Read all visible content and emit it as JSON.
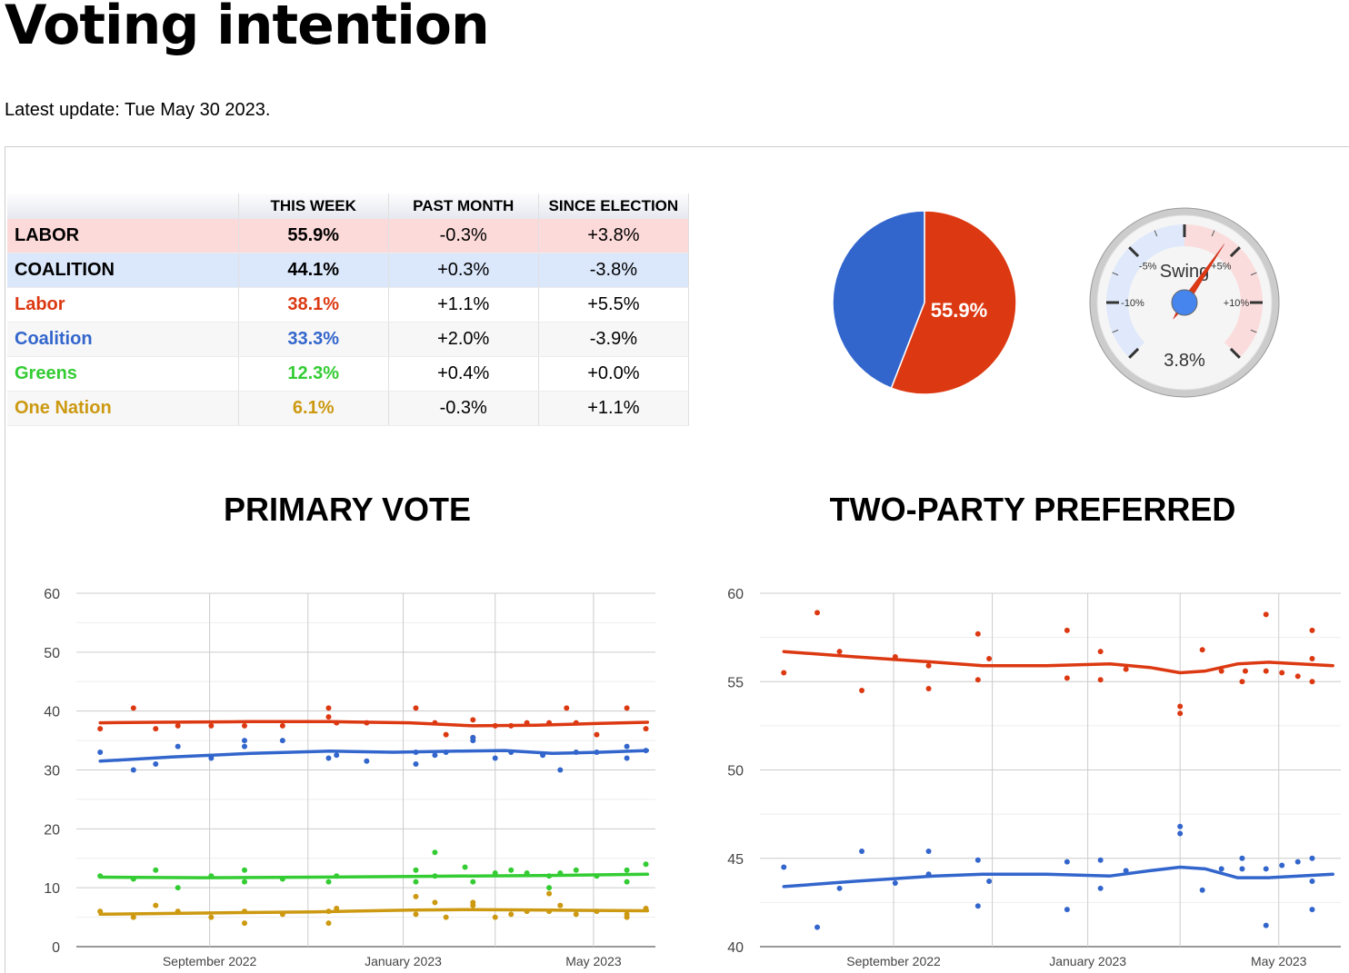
{
  "page": {
    "title": "Voting intention",
    "latest_update": "Latest update: Tue May 30 2023."
  },
  "table": {
    "headers": [
      "",
      "THIS WEEK",
      "PAST MONTH",
      "SINCE ELECTION"
    ],
    "rows": [
      {
        "party": "LABOR",
        "this_week": "55.9%",
        "past_month": "-0.3%",
        "since_election": "+3.8%",
        "color": "#000000"
      },
      {
        "party": "COALITION",
        "this_week": "44.1%",
        "past_month": "+0.3%",
        "since_election": "-3.8%",
        "color": "#000000"
      },
      {
        "party": "Labor",
        "this_week": "38.1%",
        "past_month": "+1.1%",
        "since_election": "+5.5%",
        "color": "#dc3912"
      },
      {
        "party": "Coalition",
        "this_week": "33.3%",
        "past_month": "+2.0%",
        "since_election": "-3.9%",
        "color": "#3366cc"
      },
      {
        "party": "Greens",
        "this_week": "12.3%",
        "past_month": "+0.4%",
        "since_election": "+0.0%",
        "color": "#33cc33"
      },
      {
        "party": "One Nation",
        "this_week": "6.1%",
        "past_month": "-0.3%",
        "since_election": "+1.1%",
        "color": "#cc9911"
      }
    ]
  },
  "pie": {
    "label": "55.9%",
    "slices": [
      {
        "name": "Labor",
        "value": 55.9,
        "color": "#dc3912"
      },
      {
        "name": "Coalition",
        "value": 44.1,
        "color": "#3366cc"
      }
    ]
  },
  "gauge": {
    "title": "Swing",
    "value": 3.8,
    "value_label": "3.8%",
    "min": -15,
    "max": 15,
    "tick_labels": [
      "-10%",
      "-5%",
      "+5%",
      "+10%"
    ]
  },
  "colors": {
    "labor": "#dc3912",
    "coalition": "#3366cc",
    "greens": "#33cc33",
    "one_nation": "#cc9911"
  },
  "chart_data": [
    {
      "type": "line",
      "title": "PRIMARY VOTE",
      "ylim": [
        0,
        60
      ],
      "yticks": [
        "0",
        "10",
        "20",
        "30",
        "40",
        "50",
        "60"
      ],
      "x_range": [
        0,
        365
      ],
      "xticks": [
        {
          "x": 84,
          "label": "September 2022"
        },
        {
          "x": 206,
          "label": "January 2023"
        },
        {
          "x": 326,
          "label": "May 2023"
        }
      ],
      "x_gridlines": [
        84,
        146,
        206,
        264,
        326
      ],
      "series": [
        {
          "name": "Labor",
          "color": "#dc3912",
          "trend": [
            [
              15,
              38.0
            ],
            [
              50,
              38.1
            ],
            [
              110,
              38.2
            ],
            [
              160,
              38.2
            ],
            [
              210,
              38.0
            ],
            [
              250,
              37.5
            ],
            [
              290,
              37.6
            ],
            [
              330,
              37.9
            ],
            [
              360,
              38.1
            ]
          ],
          "points": [
            [
              15,
              37
            ],
            [
              36,
              40.5
            ],
            [
              50,
              37
            ],
            [
              64,
              37.5
            ],
            [
              85,
              37.5
            ],
            [
              106,
              37.5
            ],
            [
              130,
              37.5
            ],
            [
              159,
              40.5
            ],
            [
              159,
              39
            ],
            [
              164,
              38
            ],
            [
              183,
              38
            ],
            [
              214,
              40.5
            ],
            [
              226,
              38
            ],
            [
              233,
              36
            ],
            [
              250,
              38.5
            ],
            [
              250,
              35.5
            ],
            [
              264,
              37.5
            ],
            [
              274,
              37.5
            ],
            [
              284,
              38
            ],
            [
              298,
              38
            ],
            [
              309,
              40.5
            ],
            [
              315,
              38
            ],
            [
              328,
              36
            ],
            [
              347,
              40.5
            ],
            [
              359,
              37
            ]
          ]
        },
        {
          "name": "Coalition",
          "color": "#3366cc",
          "trend": [
            [
              15,
              31.5
            ],
            [
              60,
              32.2
            ],
            [
              110,
              32.8
            ],
            [
              160,
              33.2
            ],
            [
              200,
              33.0
            ],
            [
              240,
              33.2
            ],
            [
              270,
              33.3
            ],
            [
              300,
              32.8
            ],
            [
              330,
              33.0
            ],
            [
              360,
              33.3
            ]
          ],
          "points": [
            [
              15,
              33
            ],
            [
              36,
              30
            ],
            [
              50,
              31
            ],
            [
              64,
              34
            ],
            [
              85,
              32
            ],
            [
              106,
              34
            ],
            [
              106,
              35
            ],
            [
              130,
              35
            ],
            [
              159,
              32
            ],
            [
              164,
              32.5
            ],
            [
              183,
              31.5
            ],
            [
              214,
              31
            ],
            [
              214,
              33
            ],
            [
              226,
              32.5
            ],
            [
              233,
              33
            ],
            [
              250,
              35
            ],
            [
              250,
              35.5
            ],
            [
              264,
              32
            ],
            [
              274,
              33
            ],
            [
              294,
              32.5
            ],
            [
              305,
              30
            ],
            [
              315,
              33
            ],
            [
              328,
              33
            ],
            [
              347,
              34
            ],
            [
              347,
              32
            ],
            [
              359,
              33.3
            ]
          ]
        },
        {
          "name": "Greens",
          "color": "#33cc33",
          "trend": [
            [
              15,
              11.8
            ],
            [
              80,
              11.7
            ],
            [
              150,
              11.8
            ],
            [
              210,
              11.9
            ],
            [
              250,
              12.0
            ],
            [
              300,
              12.1
            ],
            [
              360,
              12.3
            ]
          ],
          "points": [
            [
              15,
              12
            ],
            [
              36,
              11.5
            ],
            [
              50,
              13
            ],
            [
              64,
              10
            ],
            [
              85,
              12
            ],
            [
              106,
              13
            ],
            [
              106,
              11
            ],
            [
              130,
              11.5
            ],
            [
              159,
              11
            ],
            [
              164,
              12
            ],
            [
              214,
              13
            ],
            [
              214,
              11
            ],
            [
              226,
              16
            ],
            [
              226,
              12
            ],
            [
              245,
              13.5
            ],
            [
              250,
              11
            ],
            [
              264,
              12.5
            ],
            [
              274,
              13
            ],
            [
              284,
              12.5
            ],
            [
              298,
              10
            ],
            [
              298,
              12
            ],
            [
              305,
              12.5
            ],
            [
              315,
              13
            ],
            [
              328,
              12
            ],
            [
              347,
              13
            ],
            [
              347,
              11
            ],
            [
              359,
              14
            ]
          ]
        },
        {
          "name": "One Nation",
          "color": "#cc9911",
          "trend": [
            [
              15,
              5.5
            ],
            [
              80,
              5.7
            ],
            [
              150,
              5.9
            ],
            [
              210,
              6.2
            ],
            [
              250,
              6.3
            ],
            [
              300,
              6.2
            ],
            [
              360,
              6.1
            ]
          ],
          "points": [
            [
              15,
              6
            ],
            [
              36,
              5
            ],
            [
              50,
              7
            ],
            [
              64,
              6
            ],
            [
              85,
              5
            ],
            [
              106,
              6
            ],
            [
              106,
              4
            ],
            [
              130,
              5.5
            ],
            [
              159,
              6
            ],
            [
              159,
              4
            ],
            [
              164,
              6.5
            ],
            [
              214,
              8.5
            ],
            [
              214,
              5.5
            ],
            [
              226,
              7.5
            ],
            [
              233,
              5
            ],
            [
              250,
              7.5
            ],
            [
              250,
              7
            ],
            [
              264,
              5
            ],
            [
              274,
              5.5
            ],
            [
              284,
              6
            ],
            [
              298,
              9
            ],
            [
              298,
              6
            ],
            [
              305,
              7
            ],
            [
              315,
              5.5
            ],
            [
              328,
              6
            ],
            [
              347,
              5
            ],
            [
              347,
              5.5
            ],
            [
              359,
              6.5
            ]
          ]
        }
      ]
    },
    {
      "type": "line",
      "title": "TWO-PARTY PREFERRED",
      "ylim": [
        40,
        60
      ],
      "yticks": [
        "40",
        "45",
        "50",
        "55",
        "60"
      ],
      "x_range": [
        0,
        365
      ],
      "xticks": [
        {
          "x": 84,
          "label": "September 2022"
        },
        {
          "x": 206,
          "label": "January 2023"
        },
        {
          "x": 326,
          "label": "May 2023"
        }
      ],
      "x_gridlines": [
        84,
        146,
        206,
        264,
        326
      ],
      "series": [
        {
          "name": "Labor",
          "color": "#dc3912",
          "trend": [
            [
              15,
              56.7
            ],
            [
              60,
              56.4
            ],
            [
              110,
              56.1
            ],
            [
              140,
              55.9
            ],
            [
              180,
              55.9
            ],
            [
              220,
              56.0
            ],
            [
              245,
              55.8
            ],
            [
              264,
              55.5
            ],
            [
              280,
              55.6
            ],
            [
              300,
              56.0
            ],
            [
              320,
              56.1
            ],
            [
              360,
              55.9
            ]
          ],
          "points": [
            [
              15,
              55.5
            ],
            [
              36,
              58.9
            ],
            [
              50,
              56.7
            ],
            [
              64,
              54.5
            ],
            [
              85,
              56.4
            ],
            [
              106,
              55.9
            ],
            [
              106,
              54.6
            ],
            [
              137,
              57.7
            ],
            [
              137,
              55.1
            ],
            [
              144,
              56.3
            ],
            [
              193,
              57.9
            ],
            [
              193,
              55.2
            ],
            [
              214,
              56.7
            ],
            [
              214,
              55.1
            ],
            [
              230,
              55.7
            ],
            [
              264,
              53.6
            ],
            [
              264,
              53.2
            ],
            [
              278,
              56.8
            ],
            [
              290,
              55.6
            ],
            [
              303,
              55
            ],
            [
              305,
              55.6
            ],
            [
              318,
              58.8
            ],
            [
              318,
              55.6
            ],
            [
              328,
              55.5
            ],
            [
              338,
              55.3
            ],
            [
              347,
              57.9
            ],
            [
              347,
              56.3
            ],
            [
              347,
              55
            ]
          ]
        },
        {
          "name": "Coalition",
          "color": "#3366cc",
          "trend": [
            [
              15,
              43.4
            ],
            [
              60,
              43.7
            ],
            [
              110,
              44.0
            ],
            [
              140,
              44.1
            ],
            [
              180,
              44.1
            ],
            [
              220,
              44.0
            ],
            [
              245,
              44.3
            ],
            [
              264,
              44.5
            ],
            [
              280,
              44.4
            ],
            [
              300,
              43.9
            ],
            [
              320,
              43.9
            ],
            [
              360,
              44.1
            ]
          ],
          "points": [
            [
              15,
              44.5
            ],
            [
              36,
              41.1
            ],
            [
              50,
              43.3
            ],
            [
              64,
              45.4
            ],
            [
              85,
              43.6
            ],
            [
              106,
              44.1
            ],
            [
              106,
              45.4
            ],
            [
              137,
              44.9
            ],
            [
              137,
              42.3
            ],
            [
              144,
              43.7
            ],
            [
              193,
              44.8
            ],
            [
              193,
              42.1
            ],
            [
              214,
              44.9
            ],
            [
              214,
              43.3
            ],
            [
              230,
              44.3
            ],
            [
              264,
              46.8
            ],
            [
              264,
              46.4
            ],
            [
              278,
              43.2
            ],
            [
              290,
              44.4
            ],
            [
              303,
              45
            ],
            [
              303,
              44.4
            ],
            [
              318,
              41.2
            ],
            [
              318,
              44.4
            ],
            [
              328,
              44.6
            ],
            [
              338,
              44.8
            ],
            [
              347,
              45
            ],
            [
              347,
              42.1
            ],
            [
              347,
              43.7
            ]
          ]
        }
      ]
    }
  ]
}
